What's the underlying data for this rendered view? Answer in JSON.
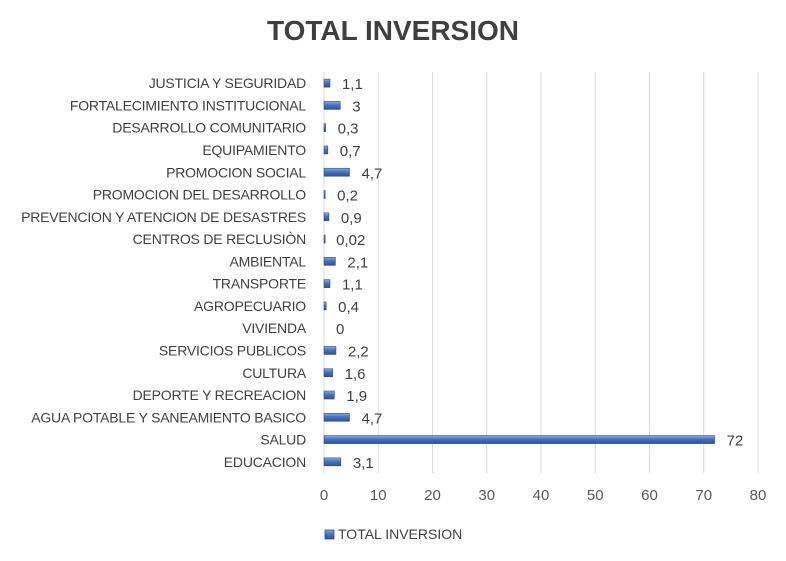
{
  "chart_data": {
    "type": "bar",
    "orientation": "horizontal",
    "title": "TOTAL INVERSION",
    "categories": [
      "JUSTICIA Y SEGURIDAD",
      "FORTALECIMIENTO INSTITUCIONAL",
      "DESARROLLO COMUNITARIO",
      "EQUIPAMIENTO",
      "PROMOCION SOCIAL",
      "PROMOCION DEL DESARROLLO",
      "PREVENCION Y ATENCION DE DESASTRES",
      "CENTROS DE RECLUSIÒN",
      "AMBIENTAL",
      "TRANSPORTE",
      "AGROPECUARIO",
      "VIVIENDA",
      "SERVICIOS PUBLICOS",
      "CULTURA",
      "DEPORTE Y RECREACION",
      "AGUA POTABLE Y SANEAMIENTO BASICO",
      "SALUD",
      "EDUCACION"
    ],
    "series": [
      {
        "name": "TOTAL INVERSION",
        "values": [
          1.1,
          3,
          0.3,
          0.7,
          4.7,
          0.2,
          0.9,
          0.02,
          2.1,
          1.1,
          0.4,
          0,
          2.2,
          1.6,
          1.9,
          4.7,
          72,
          3.1
        ],
        "labels": [
          "1,1",
          "3",
          "0,3",
          "0,7",
          "4,7",
          "0,2",
          "0,9",
          "0,02",
          "2,1",
          "1,1",
          "0,4",
          "0",
          "2,2",
          "1,6",
          "1,9",
          "4,7",
          "72",
          "3,1"
        ]
      }
    ],
    "x_ticks": [
      "0",
      "10",
      "20",
      "30",
      "40",
      "50",
      "60",
      "70",
      "80"
    ],
    "xlim": [
      0,
      80
    ],
    "grid": "vertical",
    "legend": "bottom-left",
    "colors": {
      "bar": "#4472c4",
      "bar_dark": "#2f528f",
      "bar_light": "#8faadc"
    }
  }
}
